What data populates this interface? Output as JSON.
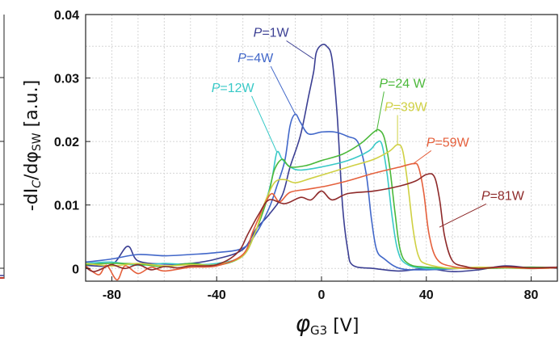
{
  "chart_data": {
    "type": "line",
    "title": "",
    "xlabel_symbol": "φ",
    "xlabel_subscript": "G3",
    "xlabel_unit": "[V]",
    "ylabel_prefix": "-dI",
    "ylabel_sub1": "C",
    "ylabel_mid": "/dφ",
    "ylabel_sub2": "SW",
    "ylabel_unit": "[a.u.]",
    "xlim": [
      -90,
      90
    ],
    "ylim": [
      -0.002,
      0.04
    ],
    "x_ticks": [
      -80,
      -40,
      0,
      40,
      80
    ],
    "x_tick_labels": [
      "-80",
      "-40",
      "0",
      "40",
      "80"
    ],
    "y_ticks": [
      0,
      0.01,
      0.02,
      0.03,
      0.04
    ],
    "y_tick_labels": [
      "0",
      "0.01",
      "0.02",
      "0.03",
      "0.04"
    ],
    "grid": true,
    "series": [
      {
        "name": "P=1W",
        "color": "#3b3f93",
        "points": [
          [
            -90,
            0.0005
          ],
          [
            -80,
            0.0006
          ],
          [
            -74,
            0.0035
          ],
          [
            -70,
            0.0012
          ],
          [
            -60,
            0.0007
          ],
          [
            -50,
            0.0008
          ],
          [
            -40,
            0.0015
          ],
          [
            -30,
            0.003
          ],
          [
            -25,
            0.0062
          ],
          [
            -20,
            0.0085
          ],
          [
            -15,
            0.0115
          ],
          [
            -12,
            0.016
          ],
          [
            -8,
            0.021
          ],
          [
            -5,
            0.027
          ],
          [
            -3,
            0.031
          ],
          [
            -2,
            0.034
          ],
          [
            0,
            0.0352
          ],
          [
            2,
            0.035
          ],
          [
            4,
            0.033
          ],
          [
            6,
            0.024
          ],
          [
            8,
            0.01
          ],
          [
            10,
            0.003
          ],
          [
            12,
            0.0005
          ],
          [
            20,
            0.0
          ],
          [
            30,
            -0.0004
          ],
          [
            40,
            0.0
          ],
          [
            50,
            -0.0005
          ],
          [
            60,
            -0.0002
          ],
          [
            70,
            0.0004
          ],
          [
            80,
            0.0001
          ],
          [
            90,
            0.0002
          ]
        ]
      },
      {
        "name": "P=4W",
        "color": "#4167c9",
        "points": [
          [
            -90,
            0.001
          ],
          [
            -80,
            0.0015
          ],
          [
            -70,
            0.0022
          ],
          [
            -60,
            0.002
          ],
          [
            -50,
            0.0022
          ],
          [
            -40,
            0.0025
          ],
          [
            -30,
            0.0032
          ],
          [
            -25,
            0.0055
          ],
          [
            -20,
            0.0095
          ],
          [
            -17,
            0.013
          ],
          [
            -14,
            0.017
          ],
          [
            -12,
            0.0225
          ],
          [
            -10,
            0.0243
          ],
          [
            -8,
            0.023
          ],
          [
            -5,
            0.0212
          ],
          [
            0,
            0.0215
          ],
          [
            5,
            0.0215
          ],
          [
            10,
            0.0208
          ],
          [
            14,
            0.0198
          ],
          [
            17,
            0.015
          ],
          [
            19,
            0.008
          ],
          [
            21,
            0.003
          ],
          [
            24,
            0.0015
          ],
          [
            30,
            0.0
          ],
          [
            40,
            -0.0002
          ],
          [
            60,
            0.0001
          ],
          [
            80,
            0.0002
          ],
          [
            90,
            0.0
          ]
        ]
      },
      {
        "name": "P=12W",
        "color": "#39c9c7",
        "points": [
          [
            -90,
            0.0008
          ],
          [
            -80,
            0.001
          ],
          [
            -70,
            0.0005
          ],
          [
            -60,
            0.0008
          ],
          [
            -50,
            0.0006
          ],
          [
            -40,
            0.0008
          ],
          [
            -30,
            0.002
          ],
          [
            -25,
            0.006
          ],
          [
            -22,
            0.0095
          ],
          [
            -19,
            0.014
          ],
          [
            -17,
            0.0183
          ],
          [
            -15,
            0.0172
          ],
          [
            -12,
            0.016
          ],
          [
            -8,
            0.0155
          ],
          [
            0,
            0.016
          ],
          [
            10,
            0.017
          ],
          [
            18,
            0.0185
          ],
          [
            21,
            0.0198
          ],
          [
            23,
            0.0196
          ],
          [
            25,
            0.015
          ],
          [
            27,
            0.008
          ],
          [
            29,
            0.003
          ],
          [
            32,
            0.0008
          ],
          [
            40,
            0.0
          ],
          [
            60,
            0.0001
          ],
          [
            80,
            0.0
          ],
          [
            90,
            0.0001
          ]
        ]
      },
      {
        "name": "P=24 W",
        "color": "#4bb83a",
        "points": [
          [
            -90,
            0.0006
          ],
          [
            -80,
            0.0008
          ],
          [
            -70,
            0.0007
          ],
          [
            -60,
            0.0003
          ],
          [
            -50,
            0.0008
          ],
          [
            -40,
            0.0005
          ],
          [
            -30,
            0.002
          ],
          [
            -25,
            0.006
          ],
          [
            -22,
            0.0093
          ],
          [
            -20,
            0.012
          ],
          [
            -18,
            0.0155
          ],
          [
            -15,
            0.0172
          ],
          [
            -12,
            0.016
          ],
          [
            -6,
            0.0162
          ],
          [
            0,
            0.017
          ],
          [
            8,
            0.018
          ],
          [
            15,
            0.0197
          ],
          [
            20,
            0.0215
          ],
          [
            22,
            0.0218
          ],
          [
            24,
            0.0205
          ],
          [
            26,
            0.016
          ],
          [
            28,
            0.009
          ],
          [
            30,
            0.003
          ],
          [
            33,
            0.0008
          ],
          [
            40,
            0.0002
          ],
          [
            60,
            0.0
          ],
          [
            80,
            0.0002
          ],
          [
            90,
            0.0001
          ]
        ]
      },
      {
        "name": "P=39W",
        "color": "#cfd043",
        "points": [
          [
            -90,
            0.0008
          ],
          [
            -80,
            0.0004
          ],
          [
            -70,
            0.0008
          ],
          [
            -60,
            0.0004
          ],
          [
            -50,
            0.0006
          ],
          [
            -40,
            0.0006
          ],
          [
            -30,
            0.002
          ],
          [
            -25,
            0.006
          ],
          [
            -22,
            0.01
          ],
          [
            -18,
            0.0135
          ],
          [
            -14,
            0.014
          ],
          [
            -10,
            0.0135
          ],
          [
            -4,
            0.0142
          ],
          [
            4,
            0.0152
          ],
          [
            12,
            0.0162
          ],
          [
            20,
            0.0172
          ],
          [
            26,
            0.0185
          ],
          [
            29,
            0.0195
          ],
          [
            31,
            0.0185
          ],
          [
            33,
            0.013
          ],
          [
            35,
            0.006
          ],
          [
            37,
            0.002
          ],
          [
            40,
            0.0007
          ],
          [
            50,
            0.0
          ],
          [
            60,
            0.0002
          ],
          [
            80,
            0.0
          ],
          [
            90,
            0.0001
          ]
        ]
      },
      {
        "name": "P=59W",
        "color": "#e5603c",
        "points": [
          [
            -90,
            0.0004
          ],
          [
            -85,
            -0.001
          ],
          [
            -82,
            0.0005
          ],
          [
            -78,
            -0.0018
          ],
          [
            -75,
            0.0004
          ],
          [
            -70,
            -0.0008
          ],
          [
            -65,
            0.0002
          ],
          [
            -60,
            -0.0004
          ],
          [
            -50,
            0.0002
          ],
          [
            -40,
            0.0004
          ],
          [
            -30,
            0.0022
          ],
          [
            -26,
            0.006
          ],
          [
            -22,
            0.0098
          ],
          [
            -19,
            0.0118
          ],
          [
            -16,
            0.0105
          ],
          [
            -12,
            0.012
          ],
          [
            -5,
            0.0125
          ],
          [
            2,
            0.013
          ],
          [
            10,
            0.0138
          ],
          [
            20,
            0.015
          ],
          [
            30,
            0.016
          ],
          [
            35,
            0.0165
          ],
          [
            37,
            0.016
          ],
          [
            39,
            0.012
          ],
          [
            41,
            0.0055
          ],
          [
            44,
            0.0015
          ],
          [
            50,
            0.0003
          ],
          [
            60,
            0.0
          ],
          [
            70,
            0.0002
          ],
          [
            80,
            0.0
          ],
          [
            90,
            0.0001
          ]
        ]
      },
      {
        "name": "P=81W",
        "color": "#8e2a2a",
        "points": [
          [
            -90,
            0.0002
          ],
          [
            -87,
            -0.0005
          ],
          [
            -83,
            0.0001
          ],
          [
            -80,
            0.0006
          ],
          [
            -75,
            0.0
          ],
          [
            -70,
            0.0006
          ],
          [
            -65,
            -0.0002
          ],
          [
            -60,
            0.0003
          ],
          [
            -55,
            0.0001
          ],
          [
            -50,
            0.0004
          ],
          [
            -40,
            0.0006
          ],
          [
            -32,
            0.0025
          ],
          [
            -28,
            0.0055
          ],
          [
            -24,
            0.0085
          ],
          [
            -20,
            0.0108
          ],
          [
            -14,
            0.0102
          ],
          [
            -8,
            0.0112
          ],
          [
            -4,
            0.0108
          ],
          [
            0,
            0.0122
          ],
          [
            4,
            0.0108
          ],
          [
            10,
            0.0118
          ],
          [
            20,
            0.0122
          ],
          [
            30,
            0.013
          ],
          [
            36,
            0.0138
          ],
          [
            40,
            0.0148
          ],
          [
            43,
            0.0145
          ],
          [
            45,
            0.011
          ],
          [
            47,
            0.005
          ],
          [
            50,
            0.0012
          ],
          [
            55,
            0.0003
          ],
          [
            60,
            0.0
          ],
          [
            70,
            0.0003
          ],
          [
            80,
            0.0001
          ],
          [
            90,
            0.0002
          ]
        ]
      }
    ],
    "annotations": [
      {
        "italic": "P",
        "rest": "=1W",
        "color": "#3b3f93",
        "x": -26,
        "y": 0.0365,
        "tip": [
          -3,
          0.033
        ]
      },
      {
        "italic": "P",
        "rest": "=4W",
        "color": "#4167c9",
        "x": -32,
        "y": 0.0325,
        "tip": [
          -10,
          0.0243
        ]
      },
      {
        "italic": "P",
        "rest": "=12W",
        "color": "#39c9c7",
        "x": -42,
        "y": 0.0278,
        "tip": [
          -17,
          0.0183
        ]
      },
      {
        "italic": "P",
        "rest": "=24 W",
        "color": "#4bb83a",
        "x": 22,
        "y": 0.0285,
        "tip": [
          21,
          0.0215
        ]
      },
      {
        "italic": "P",
        "rest": "=39W",
        "color": "#cfd043",
        "x": 24,
        "y": 0.0248,
        "tip": [
          29,
          0.0195
        ]
      },
      {
        "italic": "P",
        "rest": "=59W",
        "color": "#e5603c",
        "x": 40,
        "y": 0.0192,
        "tip": [
          35,
          0.0165
        ]
      },
      {
        "italic": "P",
        "rest": "=81W",
        "color": "#8e2a2a",
        "x": 61,
        "y": 0.0108,
        "tip": [
          45,
          0.0065
        ]
      }
    ]
  }
}
